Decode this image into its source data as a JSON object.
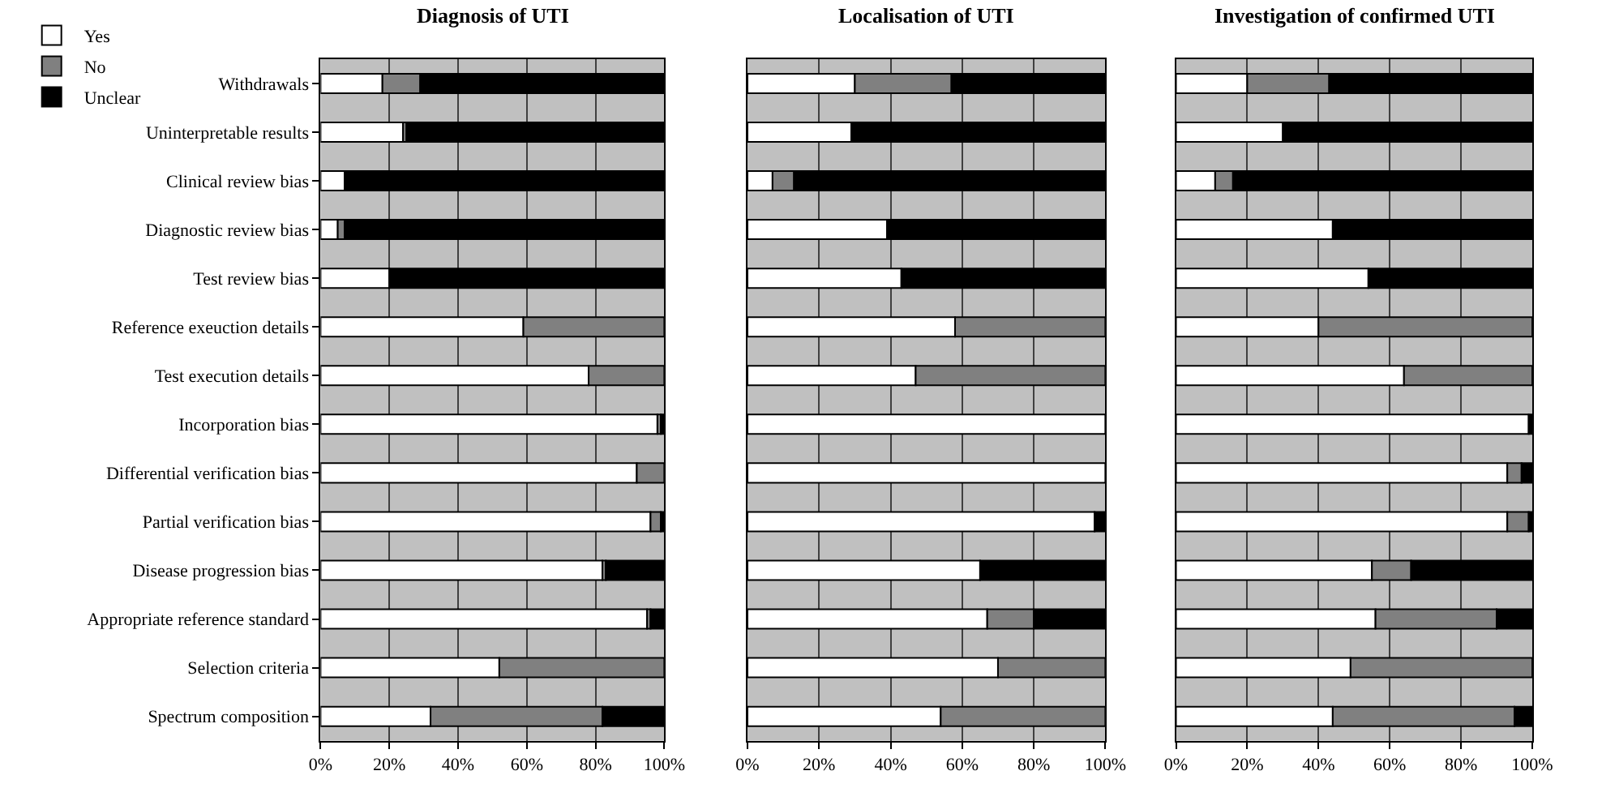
{
  "chart_data": [
    {
      "type": "bar",
      "orientation": "horizontal",
      "stacked": true,
      "title": "Diagnosis of UTI",
      "categories": [
        "Withdrawals",
        "Uninterpretable results",
        "Clinical review bias",
        "Diagnostic review bias",
        "Test review bias",
        "Reference exeuction details",
        "Test execution details",
        "Incorporation bias",
        "Differential verification bias",
        "Partial verification bias",
        "Disease progression bias",
        "Appropriate reference standard",
        "Selection criteria",
        "Spectrum composition"
      ],
      "series": [
        {
          "name": "Yes",
          "color": "#ffffff",
          "values": [
            18,
            24,
            7,
            5,
            20,
            59,
            78,
            98,
            92,
            96,
            82,
            95,
            52,
            32
          ]
        },
        {
          "name": "No",
          "color": "#808080",
          "values": [
            11,
            1,
            0,
            2,
            0,
            41,
            22,
            1,
            8,
            3,
            1,
            1,
            48,
            50
          ]
        },
        {
          "name": "Unclear",
          "color": "#000000",
          "values": [
            71,
            75,
            93,
            93,
            80,
            0,
            0,
            1,
            0,
            1,
            17,
            4,
            0,
            18
          ]
        }
      ],
      "xlim": [
        0,
        100
      ],
      "xticks": [
        {
          "value": 0,
          "label": "0%"
        },
        {
          "value": 20,
          "label": "20%"
        },
        {
          "value": 40,
          "label": "40%"
        },
        {
          "value": 60,
          "label": "60%"
        },
        {
          "value": 80,
          "label": "80%"
        },
        {
          "value": 100,
          "label": "100%"
        }
      ],
      "grid": "x",
      "legend": "top left"
    },
    {
      "type": "bar",
      "orientation": "horizontal",
      "stacked": true,
      "title": "Localisation of UTI",
      "categories": [
        null,
        null,
        null,
        null,
        null,
        null,
        null,
        null,
        null,
        null,
        null,
        null,
        null,
        null
      ],
      "series": [
        {
          "color": "#ffffff",
          "values": [
            30,
            29,
            7,
            39,
            43,
            58,
            47,
            100,
            100,
            97,
            65,
            67,
            70,
            54
          ]
        },
        {
          "color": "#808080",
          "values": [
            27,
            0,
            6,
            0,
            0,
            42,
            53,
            0,
            0,
            0,
            0,
            13,
            30,
            46
          ]
        },
        {
          "color": "#000000",
          "values": [
            43,
            71,
            87,
            61,
            57,
            0,
            0,
            0,
            0,
            3,
            35,
            20,
            0,
            0
          ]
        }
      ],
      "xlim": [
        0,
        100
      ],
      "xticks": [
        {
          "value": 0,
          "label": "0%"
        },
        {
          "value": 20,
          "label": "20%"
        },
        {
          "value": 40,
          "label": "40%"
        },
        {
          "value": 60,
          "label": "60%"
        },
        {
          "value": 80,
          "label": "80%"
        },
        {
          "value": 100,
          "label": "100%"
        }
      ],
      "grid": "x",
      "tick_labels": "x"
    },
    {
      "type": "bar",
      "orientation": "horizontal",
      "stacked": true,
      "title": "Investigation of confirmed UTI",
      "categories": [
        null,
        null,
        null,
        null,
        null,
        null,
        null,
        null,
        null,
        null,
        null,
        null,
        null,
        null
      ],
      "series": [
        {
          "color": "#ffffff",
          "values": [
            20,
            30,
            11,
            44,
            54,
            40,
            64,
            99,
            93,
            93,
            55,
            56,
            49,
            44
          ]
        },
        {
          "color": "#808080",
          "values": [
            23,
            0,
            5,
            0,
            0,
            60,
            36,
            0,
            4,
            6,
            11,
            34,
            51,
            51
          ]
        },
        {
          "color": "#000000",
          "values": [
            57,
            70,
            84,
            56,
            46,
            0,
            0,
            1,
            3,
            1,
            34,
            10,
            0,
            5
          ]
        }
      ],
      "xlim": [
        0,
        100
      ],
      "xticks": [
        {
          "value": 0,
          "label": "0%"
        },
        {
          "value": 20,
          "label": "20%"
        },
        {
          "value": 40,
          "label": "40%"
        },
        {
          "value": 60,
          "label": "60%"
        },
        {
          "value": 80,
          "label": "80%"
        },
        {
          "value": 100,
          "label": "100%"
        }
      ],
      "grid": "x",
      "tick_labels": "x"
    }
  ]
}
